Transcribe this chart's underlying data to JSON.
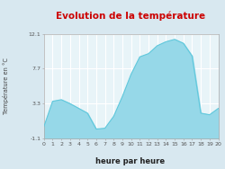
{
  "title": "Evolution de la température",
  "xlabel": "heure par heure",
  "ylabel": "Température en °C",
  "background_color": "#d8e8f0",
  "plot_bg_color": "#e8f4f8",
  "line_color": "#60c8dc",
  "fill_color": "#96d8e8",
  "grid_color": "#ffffff",
  "title_color": "#cc0000",
  "axis_color": "#aaaaaa",
  "ylim": [
    -1.1,
    12.1
  ],
  "yticks": [
    -1.1,
    3.3,
    7.7,
    12.1
  ],
  "ytick_labels": [
    "-1.1",
    "3.3",
    "7.7",
    "12.1"
  ],
  "hours": [
    0,
    1,
    2,
    3,
    4,
    5,
    6,
    7,
    8,
    9,
    10,
    11,
    12,
    13,
    14,
    15,
    16,
    17,
    18,
    19,
    20
  ],
  "temperatures": [
    0.4,
    3.6,
    3.8,
    3.3,
    2.7,
    2.1,
    0.1,
    0.2,
    1.7,
    4.2,
    7.0,
    9.2,
    9.6,
    10.6,
    11.1,
    11.4,
    10.9,
    9.3,
    2.1,
    1.9,
    2.7
  ],
  "xtick_labels": [
    "0",
    "1",
    "2",
    "3",
    "4",
    "5",
    "6",
    "7",
    "8",
    "9",
    "10",
    "11",
    "12",
    "13",
    "14",
    "15",
    "16",
    "17",
    "18",
    "19",
    "20"
  ],
  "base_val": -1.1,
  "title_fontsize": 7.5,
  "xlabel_fontsize": 6.0,
  "ylabel_fontsize": 4.8,
  "tick_fontsize": 4.5
}
